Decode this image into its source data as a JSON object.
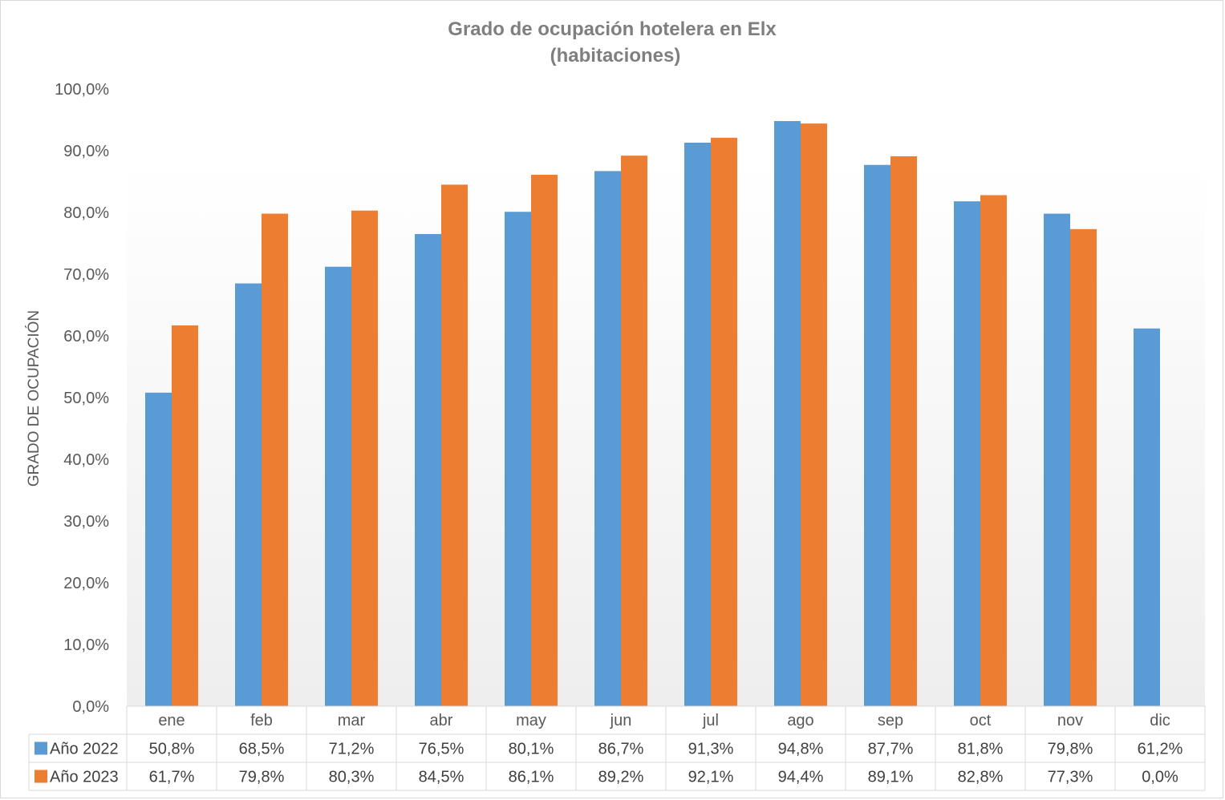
{
  "chart_data": {
    "type": "bar",
    "title": "Grado de ocupación hotelera en Elx",
    "subtitle": "(habitaciones)",
    "ylabel": "GRADO DE OCUPACIÓN",
    "xlabel": "",
    "ylim": [
      0,
      100
    ],
    "ytick_step": 10,
    "ytick_labels": [
      "0,0%",
      "10,0%",
      "20,0%",
      "30,0%",
      "40,0%",
      "50,0%",
      "60,0%",
      "70,0%",
      "80,0%",
      "90,0%",
      "100,0%"
    ],
    "grid": false,
    "legend": "data-table",
    "categories": [
      "ene",
      "feb",
      "mar",
      "abr",
      "may",
      "jun",
      "jul",
      "ago",
      "sep",
      "oct",
      "nov",
      "dic"
    ],
    "series": [
      {
        "name": "Año 2022",
        "color": "#5b9bd5",
        "values": [
          50.8,
          68.5,
          71.2,
          76.5,
          80.1,
          86.7,
          91.3,
          94.8,
          87.7,
          81.8,
          79.8,
          61.2
        ],
        "labels": [
          "50,8%",
          "68,5%",
          "71,2%",
          "76,5%",
          "80,1%",
          "86,7%",
          "91,3%",
          "94,8%",
          "87,7%",
          "81,8%",
          "79,8%",
          "61,2%"
        ]
      },
      {
        "name": "Año 2023",
        "color": "#ed7d31",
        "values": [
          61.7,
          79.8,
          80.3,
          84.5,
          86.1,
          89.2,
          92.1,
          94.4,
          89.1,
          82.8,
          77.3,
          0.0
        ],
        "labels": [
          "61,7%",
          "79,8%",
          "80,3%",
          "84,5%",
          "86,1%",
          "89,2%",
          "92,1%",
          "94,4%",
          "89,1%",
          "82,8%",
          "77,3%",
          "0,0%"
        ]
      }
    ]
  }
}
